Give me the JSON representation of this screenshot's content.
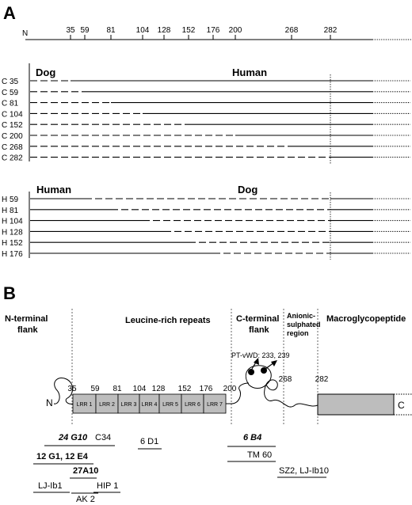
{
  "panel_a": {
    "label": "A",
    "ruler": {
      "n_label": "N",
      "ticks": [
        "35",
        "59",
        "81",
        "104",
        "128",
        "152",
        "176",
        "200",
        "268",
        "282"
      ]
    },
    "group1": {
      "left_title": "Dog",
      "right_title": "Human",
      "rows": [
        {
          "label": "C 35",
          "split_residue": 35
        },
        {
          "label": "C 59",
          "split_residue": 59
        },
        {
          "label": "C 81",
          "split_residue": 81
        },
        {
          "label": "C 104",
          "split_residue": 104
        },
        {
          "label": "C 152",
          "split_residue": 152
        },
        {
          "label": "C 200",
          "split_residue": 200
        },
        {
          "label": "C 268",
          "split_residue": 268
        },
        {
          "label": "C 282",
          "split_residue": 282
        }
      ]
    },
    "group2": {
      "left_title": "Human",
      "right_title": "Dog",
      "rows": [
        {
          "label": "H 59",
          "split_residue": 59
        },
        {
          "label": "H 81",
          "split_residue": 81
        },
        {
          "label": "H 104",
          "split_residue": 104
        },
        {
          "label": "H 128",
          "split_residue": 128
        },
        {
          "label": "H 152",
          "split_residue": 152
        },
        {
          "label": "H 176",
          "split_residue": 176
        }
      ]
    }
  },
  "panel_b": {
    "label": "B",
    "regions": {
      "n_terminal_line1": "N-terminal",
      "n_terminal_line2": "flank",
      "lrr": "Leucine-rich repeats",
      "c_terminal_line1": "C-terminal",
      "c_terminal_line2": "flank",
      "anionic_line1": "Anionic-",
      "anionic_line2": "sulphated",
      "anionic_line3": "region",
      "macro": "Macroglycopeptide"
    },
    "pt_vwd": "PT-vWD: 233, 239",
    "residue_marks": [
      "35",
      "59",
      "81",
      "104",
      "128",
      "152",
      "176",
      "200",
      "268",
      "282"
    ],
    "repeats": [
      "LRR 1",
      "LRR 2",
      "LRR 3",
      "LRR 4",
      "LRR 5",
      "LRR 6",
      "LRR 7"
    ],
    "n_end": "N",
    "c_end": "C",
    "antibodies": {
      "ab_24g10": "24 G10",
      "ab_c34": "C34",
      "ab_12g1": "12 G1, 12 E4",
      "ab_27a10": "27A10",
      "ab_hip1": "HIP 1",
      "ab_ljib1": "LJ-Ib1",
      "ab_ak2": "AK 2",
      "ab_6d1": "6 D1",
      "ab_6b4": "6 B4",
      "ab_tm60": "TM 60",
      "ab_sz2": "SZ2, LJ-Ib10"
    },
    "colors": {
      "box_fill": "#bdbdbd",
      "box_stroke": "#000000"
    }
  }
}
